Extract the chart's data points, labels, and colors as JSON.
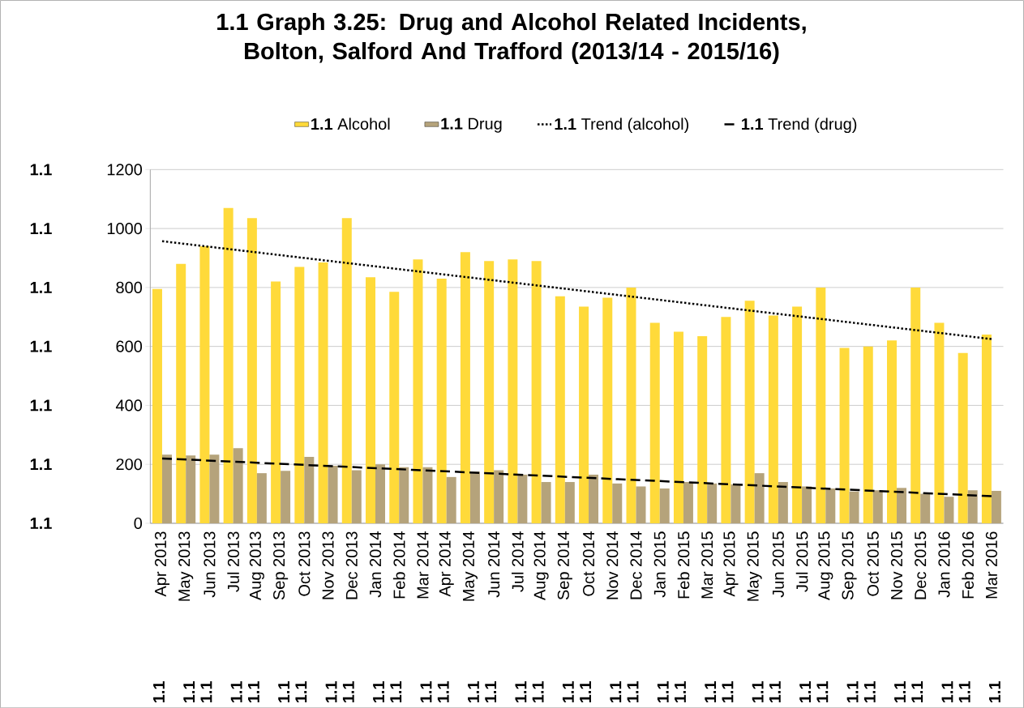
{
  "chart_data": {
    "type": "bar",
    "title": "**1.1** Graph 3.25: Drug and Alcohol Related Incidents, Bolton, Salford And Trafford (2013/14 - 2015/16)",
    "categories": [
      "Apr 2013",
      "May 2013",
      "Jun 2013",
      "Jul 2013",
      "Aug 2013",
      "Sep 2013",
      "Oct 2013",
      "Nov 2013",
      "Dec 2013",
      "Jan 2014",
      "Feb 2014",
      "Mar 2014",
      "Apr 2014",
      "May 2014",
      "Jun 2014",
      "Jul 2014",
      "Aug 2014",
      "Sep 2014",
      "Oct 2014",
      "Nov 2014",
      "Dec 2014",
      "Jan 2015",
      "Feb 2015",
      "Mar 2015",
      "Apr 2015",
      "May 2015",
      "Jun 2015",
      "Jul 2015",
      "Aug 2015",
      "Sep 2015",
      "Oct 2015",
      "Nov 2015",
      "Dec 2015",
      "Jan 2016",
      "Feb 2016",
      "Mar 2016"
    ],
    "series": [
      {
        "name": "**1.1** Alcohol",
        "color": "#ffda3a",
        "values": [
          795,
          880,
          940,
          1070,
          1035,
          820,
          870,
          885,
          1035,
          835,
          785,
          895,
          830,
          920,
          890,
          895,
          890,
          770,
          735,
          765,
          800,
          680,
          650,
          635,
          700,
          755,
          705,
          735,
          800,
          595,
          600,
          620,
          800,
          680,
          578,
          640
        ]
      },
      {
        "name": "**1.1** Drug",
        "color": "#b5a37b",
        "values": [
          233,
          230,
          233,
          255,
          170,
          178,
          225,
          195,
          180,
          200,
          190,
          190,
          157,
          175,
          180,
          165,
          140,
          140,
          165,
          135,
          125,
          118,
          140,
          135,
          132,
          170,
          140,
          125,
          118,
          108,
          112,
          120,
          100,
          90,
          112,
          110
        ]
      },
      {
        "name": "**1.1** Trend (alcohol)",
        "type": "line",
        "color": "#000000",
        "line_style": "dotted",
        "x": [
          "Apr 2013",
          "Mar 2016"
        ],
        "values": [
          957,
          625
        ]
      },
      {
        "name": "**1.1** Trend (drug)",
        "type": "line",
        "color": "#000000",
        "line_style": "dashed",
        "x": [
          "Apr 2013",
          "Mar 2016"
        ],
        "values": [
          220,
          92
        ]
      }
    ],
    "ylim": [
      0,
      1200
    ],
    "yticks": [
      0,
      200,
      400,
      600,
      800,
      1000,
      1200
    ],
    "grid": "y",
    "legend": "top",
    "annotations": [
      "1.1",
      "1.1",
      "1.1",
      "1.1",
      "1.1",
      "1.1",
      "1.1",
      "1.1",
      "1.1",
      "1.1",
      "1.1",
      "1.1",
      "1.1",
      "1.1",
      "1.1",
      "1.1",
      "1.1",
      "1.1",
      "1.1",
      "1.1",
      "1.1",
      "1.1",
      "1.1",
      "1.1",
      "1.1",
      "1.1",
      "1.1",
      "1.1",
      "1.1",
      "1.1",
      "1.1",
      "1.1",
      "1.1",
      "1.1",
      "1.1",
      "1.1",
      "1.1",
      "1.1",
      "1.1",
      "1.1",
      "1.1",
      "1.1",
      "1.1"
    ]
  }
}
